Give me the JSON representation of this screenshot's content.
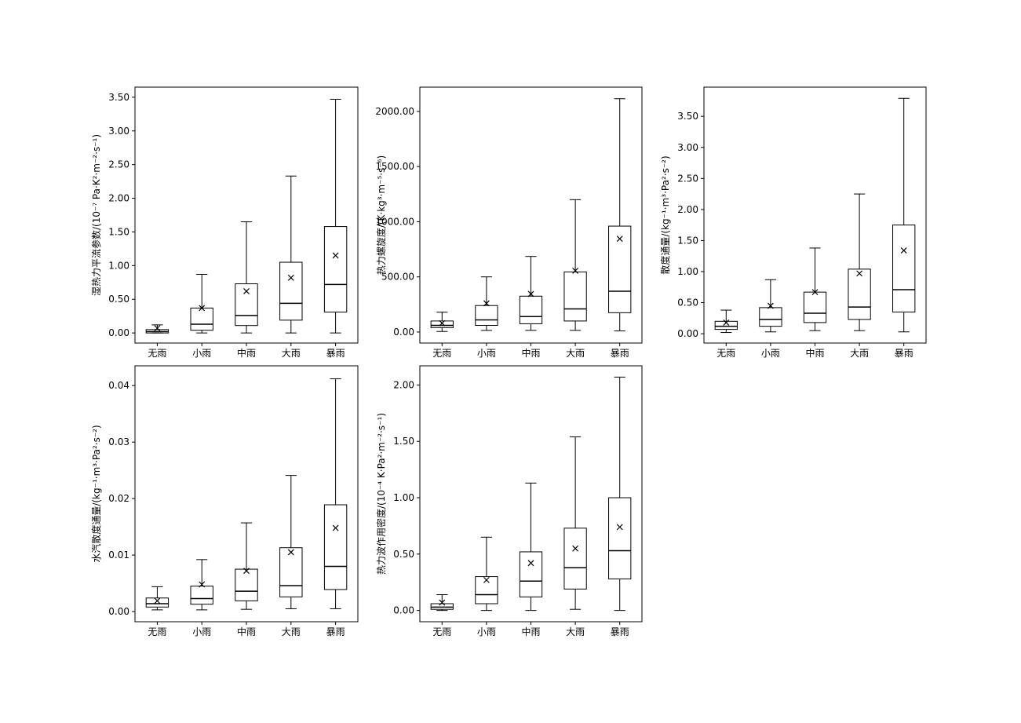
{
  "chart_data": [
    {
      "type": "box",
      "ylabel": "湿热力平流参数/(10⁻⁷ Pa·K²·m⁻²·s⁻¹)",
      "categories": [
        "无雨",
        "小雨",
        "中雨",
        "大雨",
        "暴雨"
      ],
      "ylim": [
        -0.15,
        3.65
      ],
      "yticks": [
        0.0,
        0.5,
        1.0,
        1.5,
        2.0,
        2.5,
        3.0,
        3.5
      ],
      "tick_decimals": 2,
      "series": [
        {
          "whisker_low": 0.0,
          "q1": 0.0,
          "median": 0.02,
          "q3": 0.05,
          "whisker_high": 0.12,
          "mean": 0.07
        },
        {
          "whisker_low": 0.0,
          "q1": 0.04,
          "median": 0.13,
          "q3": 0.37,
          "whisker_high": 0.87,
          "mean": 0.37
        },
        {
          "whisker_low": 0.0,
          "q1": 0.11,
          "median": 0.26,
          "q3": 0.73,
          "whisker_high": 1.65,
          "mean": 0.62
        },
        {
          "whisker_low": 0.0,
          "q1": 0.19,
          "median": 0.44,
          "q3": 1.05,
          "whisker_high": 2.33,
          "mean": 0.82
        },
        {
          "whisker_low": 0.0,
          "q1": 0.31,
          "median": 0.72,
          "q3": 1.58,
          "whisker_high": 3.47,
          "mean": 1.15
        }
      ]
    },
    {
      "type": "box",
      "ylabel": "热力螺旋度/(K·kg³·m⁻⁵·s⁻⁶)",
      "categories": [
        "无雨",
        "小雨",
        "中雨",
        "大雨",
        "暴雨"
      ],
      "ylim": [
        -100,
        2220
      ],
      "yticks": [
        0.0,
        500.0,
        1000.0,
        1500.0,
        2000.0
      ],
      "tick_decimals": 2,
      "series": [
        {
          "whisker_low": 5,
          "q1": 40,
          "median": 60,
          "q3": 100,
          "whisker_high": 180,
          "mean": 80
        },
        {
          "whisker_low": 15,
          "q1": 60,
          "median": 110,
          "q3": 240,
          "whisker_high": 500,
          "mean": 260
        },
        {
          "whisker_low": 15,
          "q1": 75,
          "median": 140,
          "q3": 325,
          "whisker_high": 685,
          "mean": 345
        },
        {
          "whisker_low": 15,
          "q1": 100,
          "median": 210,
          "q3": 545,
          "whisker_high": 1200,
          "mean": 555
        },
        {
          "whisker_low": 10,
          "q1": 175,
          "median": 370,
          "q3": 960,
          "whisker_high": 2115,
          "mean": 845
        }
      ]
    },
    {
      "type": "box",
      "ylabel": "散度通量/(kg⁻¹·m³·Pa²·s⁻²)",
      "categories": [
        "无雨",
        "小雨",
        "中雨",
        "大雨",
        "暴雨"
      ],
      "ylim": [
        -0.15,
        3.97
      ],
      "yticks": [
        0.0,
        0.5,
        1.0,
        1.5,
        2.0,
        2.5,
        3.0,
        3.5
      ],
      "tick_decimals": 2,
      "series": [
        {
          "whisker_low": 0.02,
          "q1": 0.07,
          "median": 0.12,
          "q3": 0.2,
          "whisker_high": 0.38,
          "mean": 0.18
        },
        {
          "whisker_low": 0.03,
          "q1": 0.12,
          "median": 0.23,
          "q3": 0.42,
          "whisker_high": 0.87,
          "mean": 0.45
        },
        {
          "whisker_low": 0.05,
          "q1": 0.18,
          "median": 0.33,
          "q3": 0.67,
          "whisker_high": 1.38,
          "mean": 0.67
        },
        {
          "whisker_low": 0.05,
          "q1": 0.23,
          "median": 0.43,
          "q3": 1.04,
          "whisker_high": 2.25,
          "mean": 0.97
        },
        {
          "whisker_low": 0.03,
          "q1": 0.35,
          "median": 0.71,
          "q3": 1.75,
          "whisker_high": 3.79,
          "mean": 1.34
        }
      ]
    },
    {
      "type": "box",
      "ylabel": "水汽散度通量/(kg⁻¹·m³·Pa²·s⁻²)",
      "categories": [
        "无雨",
        "小雨",
        "中雨",
        "大雨",
        "暴雨"
      ],
      "ylim": [
        -0.0018,
        0.0435
      ],
      "yticks": [
        0.0,
        0.01,
        0.02,
        0.03,
        0.04
      ],
      "tick_decimals": 2,
      "series": [
        {
          "whisker_low": 0.0003,
          "q1": 0.0008,
          "median": 0.0014,
          "q3": 0.0024,
          "whisker_high": 0.0044,
          "mean": 0.0019
        },
        {
          "whisker_low": 0.0003,
          "q1": 0.0013,
          "median": 0.0023,
          "q3": 0.0045,
          "whisker_high": 0.0092,
          "mean": 0.0048
        },
        {
          "whisker_low": 0.0004,
          "q1": 0.0019,
          "median": 0.0036,
          "q3": 0.0075,
          "whisker_high": 0.0157,
          "mean": 0.0072
        },
        {
          "whisker_low": 0.0005,
          "q1": 0.0026,
          "median": 0.0046,
          "q3": 0.0113,
          "whisker_high": 0.0241,
          "mean": 0.0105
        },
        {
          "whisker_low": 0.0005,
          "q1": 0.0039,
          "median": 0.008,
          "q3": 0.0189,
          "whisker_high": 0.0412,
          "mean": 0.0148
        }
      ]
    },
    {
      "type": "box",
      "ylabel": "热力波作用密度/(10⁻⁴ K·Pa²·m⁻²·s⁻¹)",
      "categories": [
        "无雨",
        "小雨",
        "中雨",
        "大雨",
        "暴雨"
      ],
      "ylim": [
        -0.1,
        2.17
      ],
      "yticks": [
        0.0,
        0.5,
        1.0,
        1.5,
        2.0
      ],
      "tick_decimals": 2,
      "series": [
        {
          "whisker_low": 0.0,
          "q1": 0.01,
          "median": 0.03,
          "q3": 0.06,
          "whisker_high": 0.14,
          "mean": 0.07
        },
        {
          "whisker_low": 0.0,
          "q1": 0.06,
          "median": 0.14,
          "q3": 0.3,
          "whisker_high": 0.65,
          "mean": 0.27
        },
        {
          "whisker_low": 0.0,
          "q1": 0.12,
          "median": 0.26,
          "q3": 0.52,
          "whisker_high": 1.13,
          "mean": 0.42
        },
        {
          "whisker_low": 0.01,
          "q1": 0.19,
          "median": 0.38,
          "q3": 0.73,
          "whisker_high": 1.54,
          "mean": 0.55
        },
        {
          "whisker_low": 0.0,
          "q1": 0.28,
          "median": 0.53,
          "q3": 1.0,
          "whisker_high": 2.07,
          "mean": 0.74
        }
      ]
    }
  ]
}
